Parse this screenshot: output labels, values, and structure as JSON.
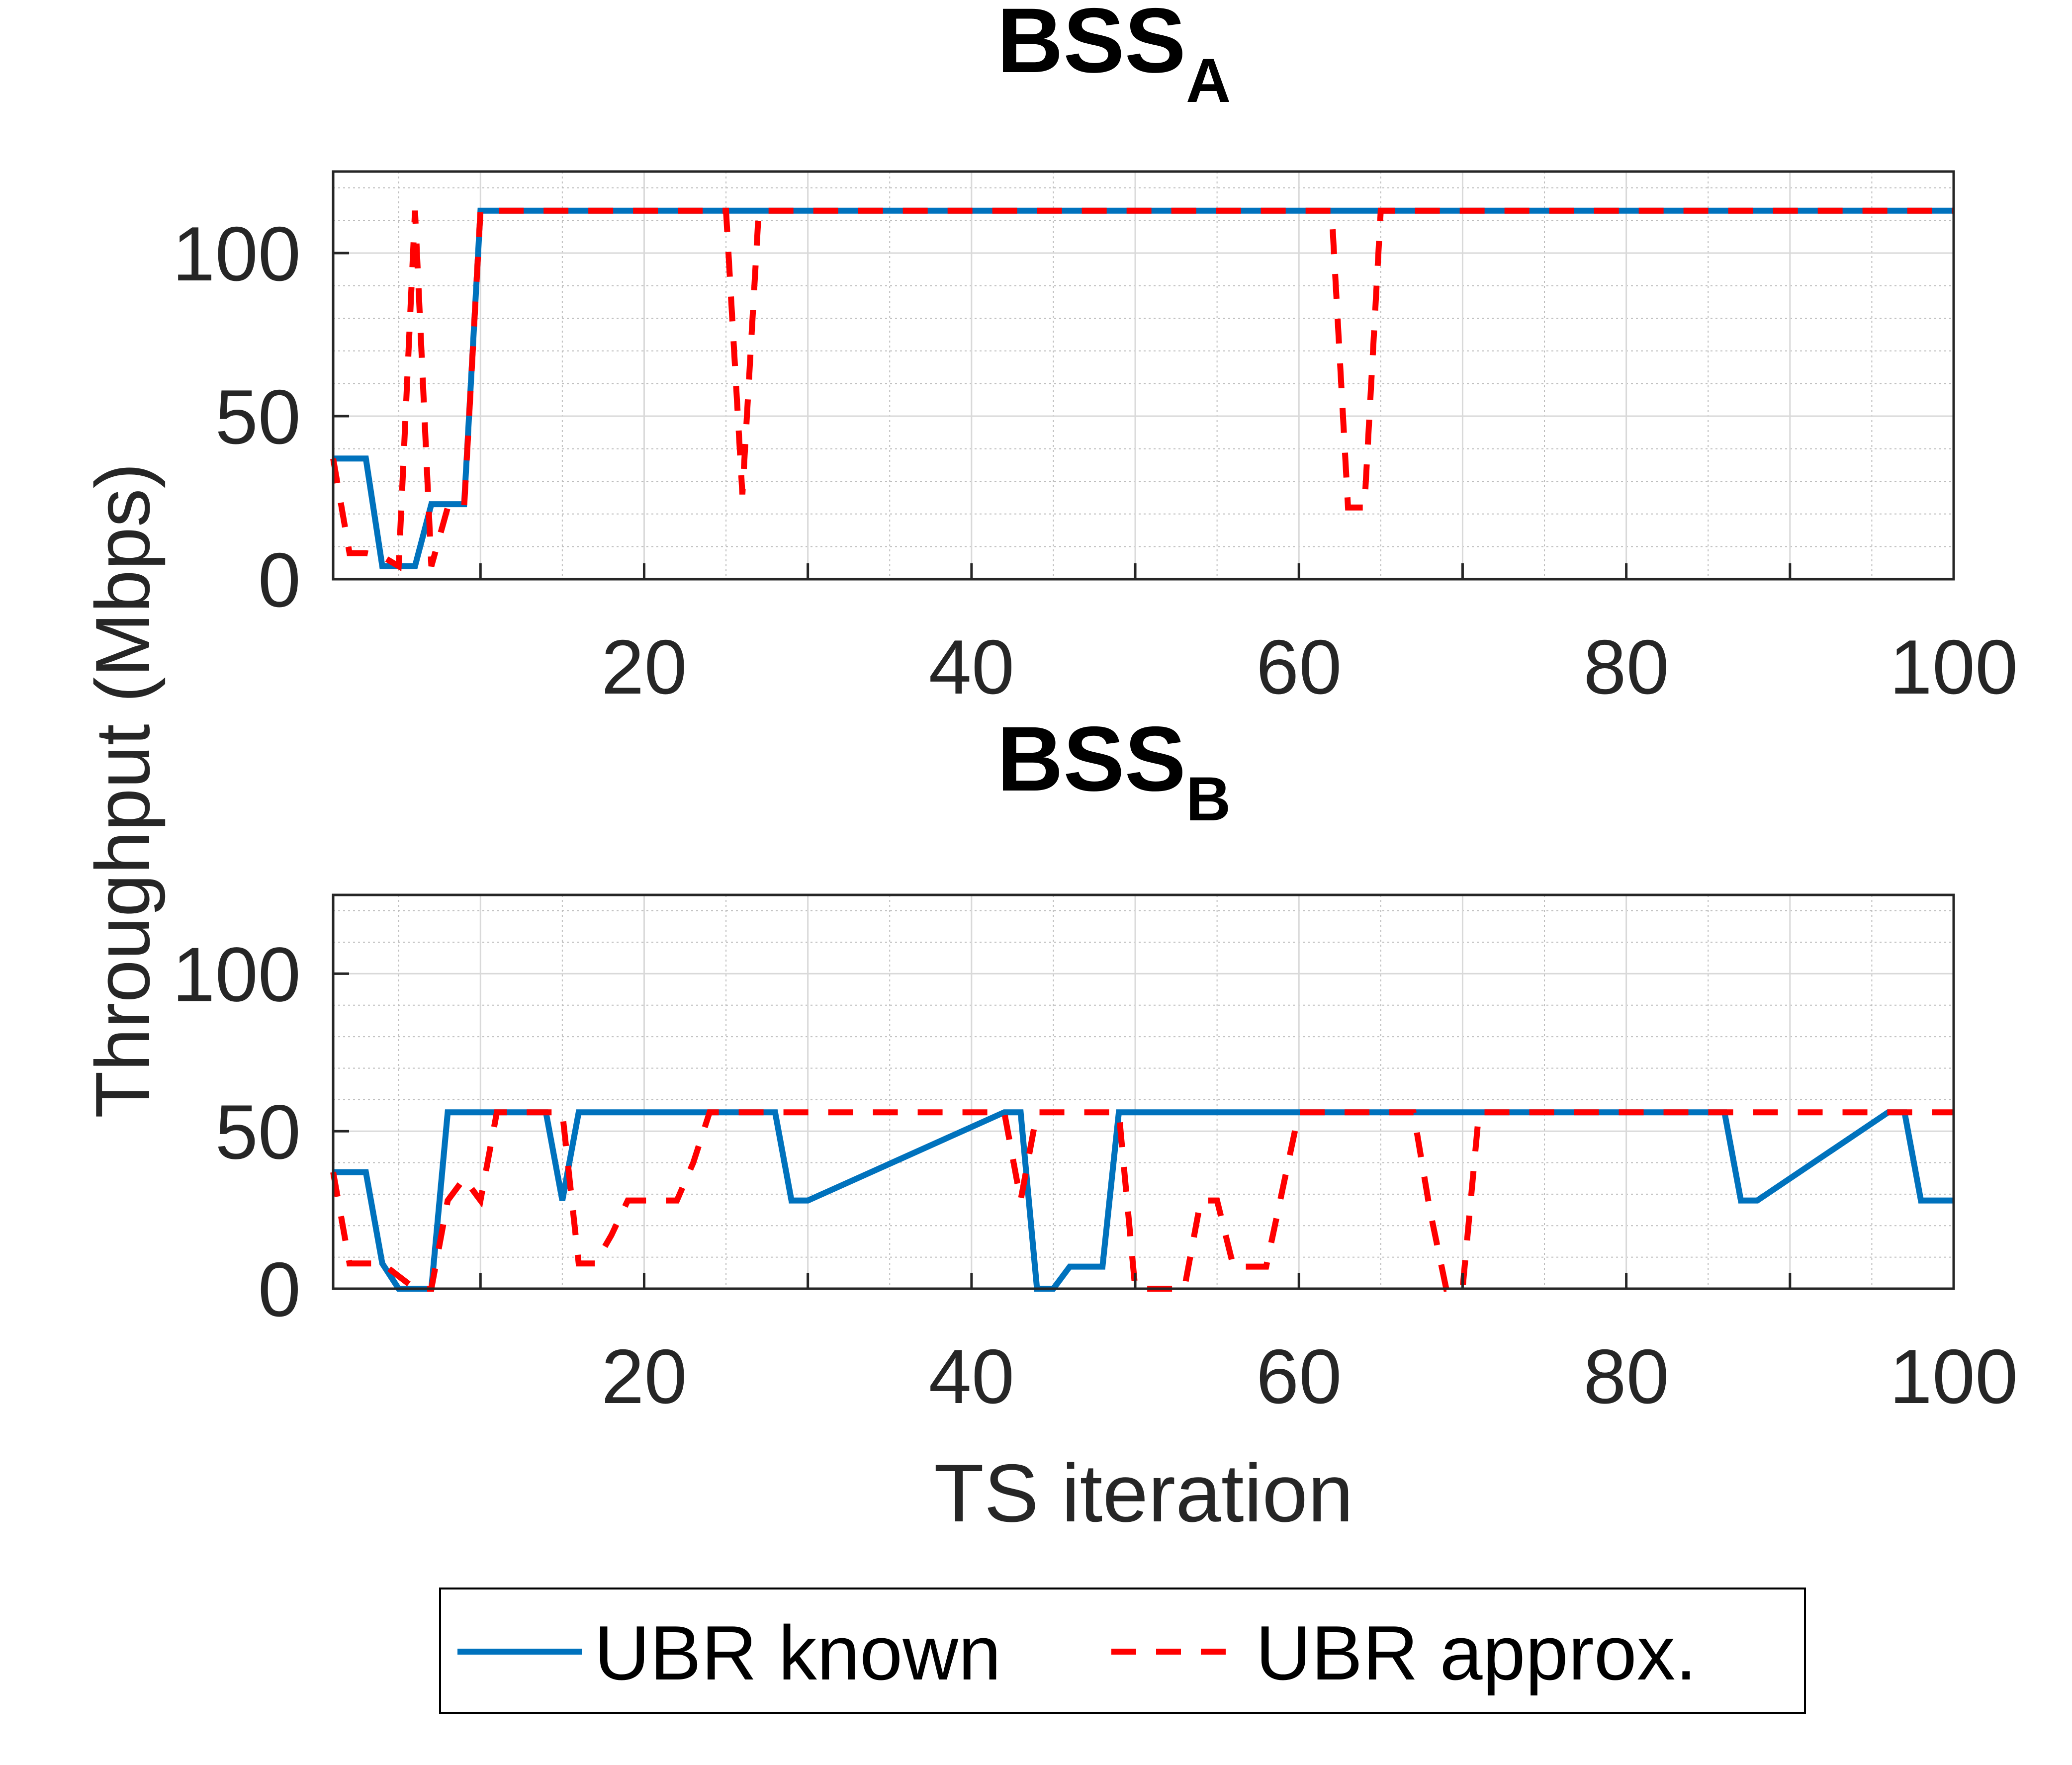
{
  "colors": {
    "known": "#0072BD",
    "approx": "#FF0000",
    "axis": "#262626",
    "grid": "#D9D9D9"
  },
  "ylabel": "Throughput (Mbps)",
  "xlabel": "TS iteration",
  "legend": {
    "known": "UBR known",
    "approx": "UBR approx.",
    "placement": "bottom-center"
  },
  "chart_data": [
    {
      "type": "line",
      "title": "BSS",
      "title_sub": "A",
      "xlim": [
        1,
        100
      ],
      "ylim": [
        0,
        125
      ],
      "xticks": [
        20,
        40,
        60,
        80,
        100
      ],
      "yticks": [
        0,
        50,
        100
      ],
      "grid": true,
      "series": [
        {
          "name": "UBR known",
          "style": "solid",
          "x": [
            1,
            2,
            3,
            4,
            5,
            6,
            7,
            8,
            9,
            10,
            11,
            100
          ],
          "y": [
            37,
            37,
            37,
            4,
            4,
            4,
            23,
            23,
            23,
            113,
            113,
            113
          ]
        },
        {
          "name": "UBR approx.",
          "style": "dashed",
          "x": [
            1,
            2,
            3,
            4,
            5,
            6,
            7,
            8,
            9,
            10,
            11,
            24,
            25,
            26,
            27,
            62,
            63,
            64,
            65,
            66,
            100
          ],
          "y": [
            37,
            8,
            8,
            7,
            4,
            113,
            4,
            22,
            22,
            113,
            113,
            113,
            113,
            26,
            113,
            113,
            22,
            22,
            113,
            113,
            113
          ]
        }
      ]
    },
    {
      "type": "line",
      "title": "BSS",
      "title_sub": "B",
      "xlim": [
        1,
        100
      ],
      "ylim": [
        0,
        125
      ],
      "xticks": [
        20,
        40,
        60,
        80,
        100
      ],
      "yticks": [
        0,
        50,
        100
      ],
      "grid": true,
      "series": [
        {
          "name": "UBR known",
          "style": "solid",
          "x": [
            1,
            2,
            3,
            4,
            5,
            6,
            7,
            8,
            14,
            15,
            16,
            27,
            28,
            29,
            30,
            42,
            43,
            44,
            45,
            46,
            47,
            48,
            49,
            85,
            86,
            87,
            88,
            96,
            97,
            98,
            100
          ],
          "y": [
            37,
            37,
            37,
            8,
            0,
            0,
            0,
            56,
            56,
            28,
            56,
            56,
            56,
            28,
            28,
            56,
            56,
            0,
            0,
            7,
            7,
            7,
            56,
            56,
            56,
            28,
            28,
            56,
            56,
            28,
            28
          ]
        },
        {
          "name": "UBR approx.",
          "style": "dashed",
          "x": [
            1,
            2,
            3,
            4,
            5,
            6,
            7,
            8,
            9,
            10,
            11,
            12,
            14,
            15,
            16,
            17,
            18,
            19,
            21,
            22,
            23,
            24,
            41,
            42,
            43,
            44,
            47,
            48,
            49,
            50,
            51,
            53,
            54,
            55,
            56,
            57,
            58,
            60,
            61,
            67,
            68,
            69,
            70,
            71,
            100
          ],
          "y": [
            37,
            8,
            8,
            8,
            4,
            0,
            0,
            28,
            35,
            28,
            56,
            56,
            56,
            56,
            8,
            8,
            17,
            28,
            28,
            28,
            40,
            56,
            56,
            56,
            28,
            56,
            56,
            56,
            56,
            0,
            0,
            0,
            28,
            28,
            7,
            7,
            7,
            56,
            56,
            56,
            25,
            0,
            0,
            56,
            56
          ]
        }
      ]
    }
  ]
}
